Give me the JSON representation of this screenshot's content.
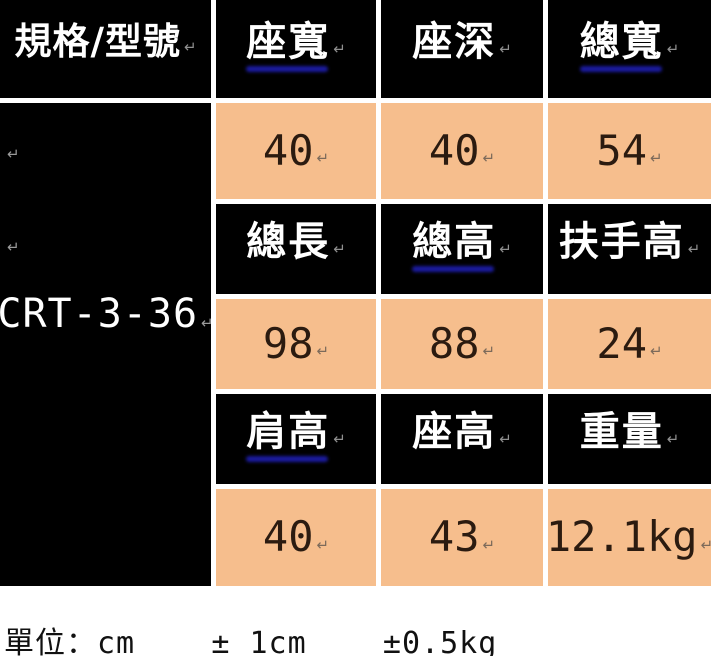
{
  "table": {
    "corner_header": "規格/型號",
    "model": "CRT-3-36",
    "rows": [
      {
        "type": "header",
        "cells": [
          {
            "label": "座寬",
            "underline": true
          },
          {
            "label": "座深",
            "underline": false
          },
          {
            "label": "總寬",
            "underline": true
          }
        ]
      },
      {
        "type": "data",
        "cells": [
          "40",
          "40",
          "54"
        ]
      },
      {
        "type": "header",
        "cells": [
          {
            "label": "總長",
            "underline": false
          },
          {
            "label": "總高",
            "underline": true
          },
          {
            "label": "扶手高",
            "underline": false
          }
        ]
      },
      {
        "type": "data",
        "cells": [
          "98",
          "88",
          "24"
        ]
      },
      {
        "type": "header",
        "cells": [
          {
            "label": "肩高",
            "underline": true
          },
          {
            "label": "座高",
            "underline": false
          },
          {
            "label": "重量",
            "underline": false
          }
        ]
      },
      {
        "type": "data",
        "cells": [
          "40",
          "43",
          "12.1kg"
        ]
      }
    ]
  },
  "footer": {
    "units_note": "單位：cm    ± 1cm    ±0.5kg"
  },
  "icons": {
    "return_mark": "↵"
  },
  "colors": {
    "header_bg": "#000000",
    "header_text": "#ffffff",
    "data_bg": "#f6be8d",
    "data_text": "#2b1b10",
    "underline": "#1b1b9e",
    "page_bg": "#ffffff"
  }
}
